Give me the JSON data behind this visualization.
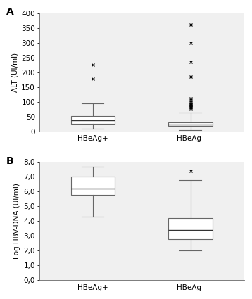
{
  "panel_A": {
    "label": "A",
    "ylabel": "ALT (UI/ml)",
    "ylim": [
      0,
      400
    ],
    "yticks": [
      0,
      50,
      100,
      150,
      200,
      250,
      300,
      350,
      400
    ],
    "ytick_labels": [
      "0",
      "50",
      "100",
      "150",
      "200",
      "250",
      "300",
      "350",
      "400"
    ],
    "groups": [
      "HBeAg+",
      "HBeAg-"
    ],
    "boxes": [
      {
        "q1": 24,
        "median": 37,
        "q3": 52,
        "whislo": 8,
        "whishi": 95,
        "fliers": [
          178,
          225
        ]
      },
      {
        "q1": 17,
        "median": 23,
        "q3": 30,
        "whislo": 4,
        "whishi": 63,
        "fliers": [
          75,
          80,
          82,
          85,
          88,
          90,
          92,
          95,
          100,
          105,
          110,
          185,
          235,
          300,
          360
        ]
      }
    ]
  },
  "panel_B": {
    "label": "B",
    "ylabel": "Log HBV-DNA (UI/ml)",
    "ylim": [
      0,
      8.0
    ],
    "yticks": [
      0.0,
      1.0,
      2.0,
      3.0,
      4.0,
      5.0,
      6.0,
      7.0,
      8.0
    ],
    "ytick_labels": [
      "0,0",
      "1,0",
      "2,0",
      "3,0",
      "4,0",
      "5,0",
      "6,0",
      "7,0",
      "8,0"
    ],
    "groups": [
      "HBeAg+",
      "HBeAg-"
    ],
    "boxes": [
      {
        "q1": 5.8,
        "median": 6.2,
        "q3": 7.0,
        "whislo": 4.3,
        "whishi": 7.7,
        "fliers": []
      },
      {
        "q1": 2.8,
        "median": 3.4,
        "q3": 4.2,
        "whislo": 2.0,
        "whishi": 6.8,
        "fliers": [
          7.4
        ]
      }
    ]
  },
  "box_facecolor": "white",
  "flier_marker": "x",
  "flier_color": "#444444",
  "median_color": "#333333",
  "line_color": "#666666",
  "background_color": "white",
  "axes_facecolor": "#f0f0f0",
  "font_size": 7.5,
  "label_fontsize": 10,
  "box_width": 0.45,
  "positions": [
    1,
    2
  ]
}
